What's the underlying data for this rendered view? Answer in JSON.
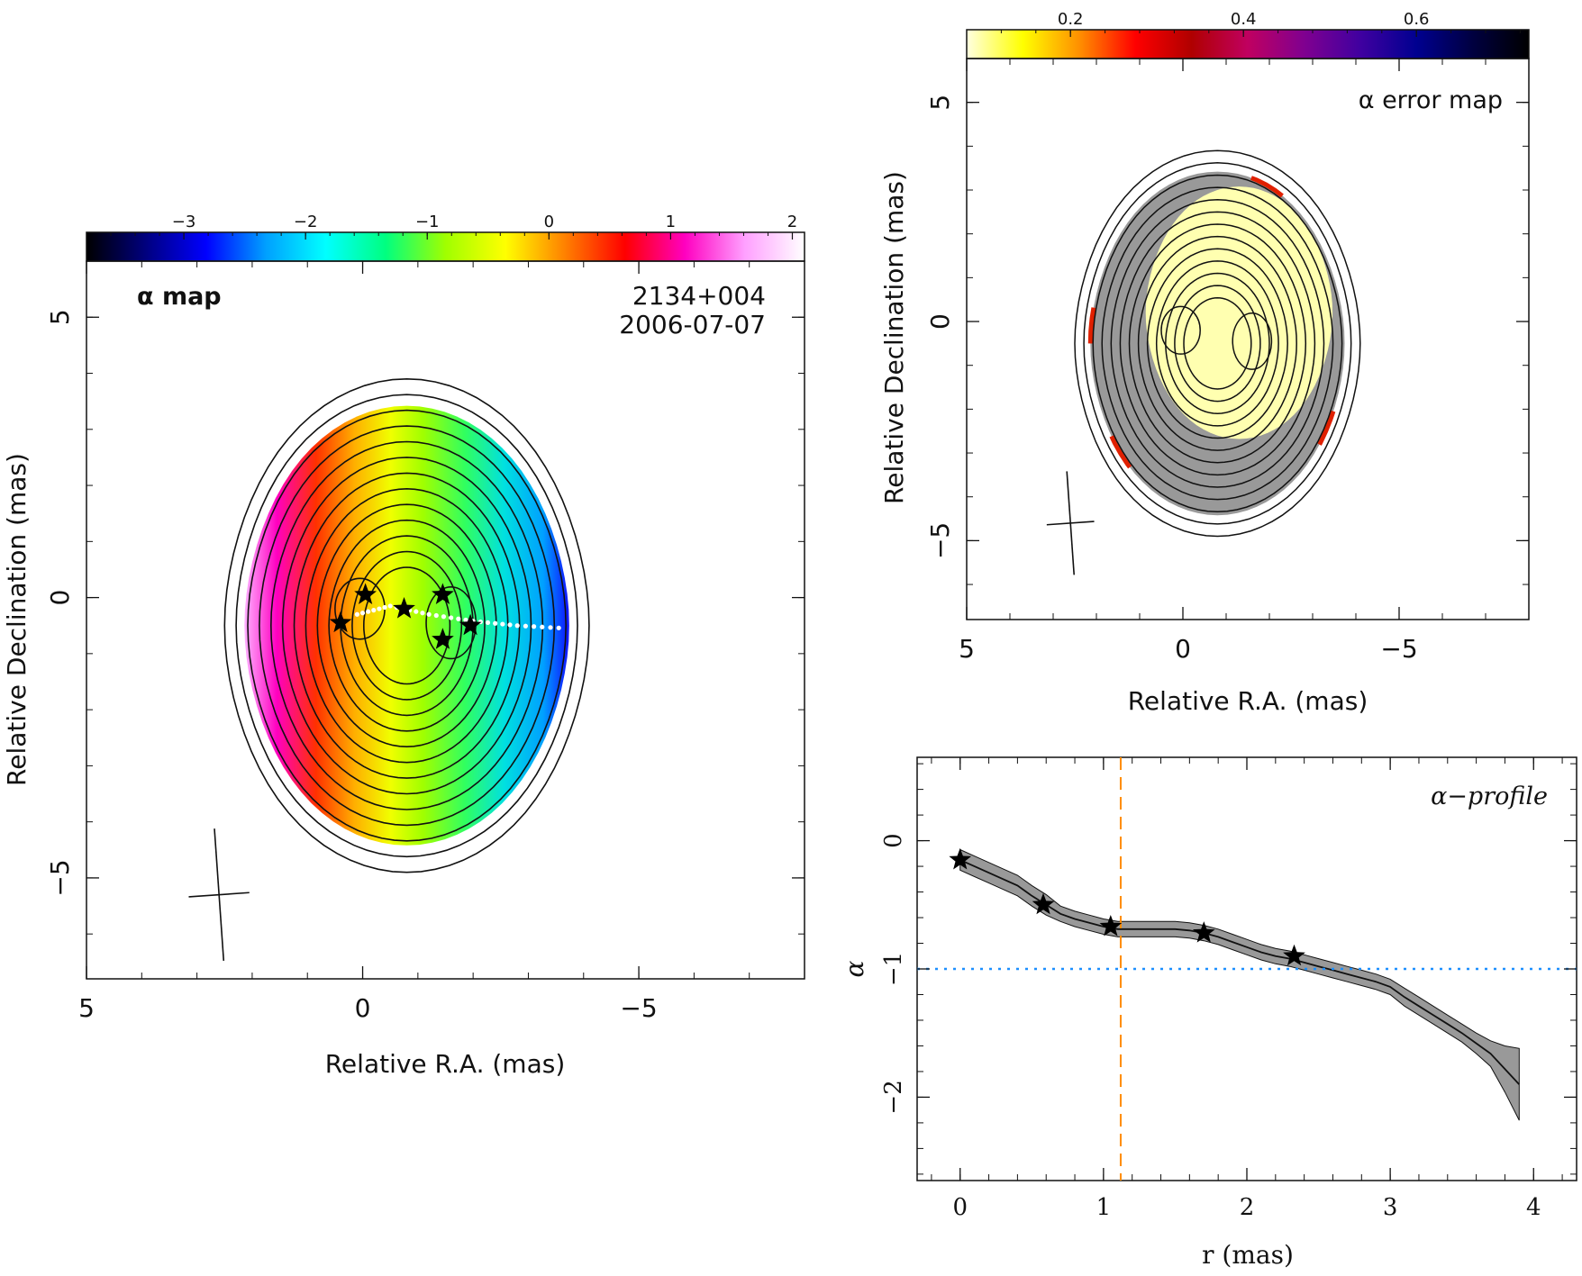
{
  "chart_data": [
    {
      "type": "heatmap",
      "panel": "alpha-map",
      "label": "α map",
      "source_name": "2134+004",
      "epoch": "2006-07-07",
      "xlabel": "Relative R.A. (mas)",
      "ylabel": "Relative Declination (mas)",
      "xlim": [
        5,
        -8
      ],
      "ylim": [
        -6.8,
        6
      ],
      "x_ticks": [
        5,
        0,
        -5
      ],
      "x_tick_labels": [
        "5",
        "0",
        "−5"
      ],
      "y_ticks": [
        5,
        0,
        -5
      ],
      "y_tick_labels": [
        "5",
        "0",
        "−5"
      ],
      "colorbar": {
        "range": [
          -3.8,
          2.1
        ],
        "ticks": [
          -3,
          -2,
          -1,
          0,
          1,
          2
        ],
        "tick_labels": [
          "−3",
          "−2",
          "−1",
          "0",
          "1",
          "2"
        ],
        "stops": [
          "#000000",
          "#000080",
          "#0000ff",
          "#00a0ff",
          "#00ffff",
          "#00ff80",
          "#a0ff00",
          "#ffff00",
          "#ff8000",
          "#ff0000",
          "#ff00c0",
          "#ffa0ff",
          "#ffffff"
        ]
      },
      "core_components": [
        {
          "x": 0.4,
          "y": -0.45
        },
        {
          "x": -0.05,
          "y": 0.05
        },
        {
          "x": -0.75,
          "y": -0.2
        },
        {
          "x": -1.45,
          "y": 0.05
        },
        {
          "x": -1.45,
          "y": -0.75
        },
        {
          "x": -1.95,
          "y": -0.5
        }
      ],
      "ridge_line": [
        {
          "x": 0.1,
          "y": -0.3
        },
        {
          "x": -0.5,
          "y": -0.15
        },
        {
          "x": -1.2,
          "y": -0.3
        },
        {
          "x": -2.0,
          "y": -0.42
        },
        {
          "x": -2.8,
          "y": -0.5
        },
        {
          "x": -3.7,
          "y": -0.55
        }
      ],
      "beam": {
        "major_mas": 2.4,
        "minor_mas": 1.1,
        "pa_deg": 4
      }
    },
    {
      "type": "heatmap",
      "panel": "alpha-error-map",
      "label": "α error map",
      "xlabel": "Relative R.A. (mas)",
      "ylabel": "Relative Declination (mas)",
      "xlim": [
        5,
        -8
      ],
      "ylim": [
        -6.8,
        6
      ],
      "x_ticks": [
        5,
        0,
        -5
      ],
      "x_tick_labels": [
        "5",
        "0",
        "−5"
      ],
      "y_ticks": [
        5,
        0,
        -5
      ],
      "y_tick_labels": [
        "5",
        "0",
        "−5"
      ],
      "colorbar": {
        "range": [
          0.08,
          0.73
        ],
        "ticks": [
          0.2,
          0.4,
          0.6
        ],
        "tick_labels": [
          "0.2",
          "0.4",
          "0.6"
        ],
        "stops": [
          "#ffffe0",
          "#ffff00",
          "#ff9000",
          "#ff0000",
          "#b00000",
          "#c00060",
          "#800090",
          "#4000a0",
          "#000090",
          "#000040",
          "#000000"
        ]
      },
      "flat_color": "#999999",
      "low_error_color": "#ffffb0",
      "beam": {
        "major_mas": 2.4,
        "minor_mas": 1.1,
        "pa_deg": 4
      }
    },
    {
      "type": "line",
      "panel": "alpha-profile",
      "label": "α−profile",
      "xlabel": "r (mas)",
      "ylabel": "α",
      "xlim": [
        -0.3,
        4.3
      ],
      "ylim": [
        -2.65,
        0.65
      ],
      "x_ticks": [
        0,
        1,
        2,
        3,
        4
      ],
      "x_tick_labels": [
        "0",
        "1",
        "2",
        "3",
        "4"
      ],
      "y_ticks": [
        0,
        -1,
        -2
      ],
      "y_tick_labels": [
        "0",
        "−1",
        "−2"
      ],
      "series": [
        {
          "x": [
            0,
            0.1,
            0.2,
            0.3,
            0.4,
            0.5,
            0.6,
            0.7,
            0.8,
            0.9,
            1.0,
            1.1,
            1.2,
            1.3,
            1.4,
            1.5,
            1.6,
            1.7,
            1.8,
            1.9,
            2.0,
            2.1,
            2.2,
            2.3,
            2.4,
            2.5,
            2.6,
            2.7,
            2.8,
            2.9,
            3.0,
            3.1,
            3.2,
            3.3,
            3.4,
            3.5,
            3.6,
            3.7,
            3.8,
            3.9
          ],
          "y": [
            -0.15,
            -0.2,
            -0.25,
            -0.3,
            -0.35,
            -0.43,
            -0.5,
            -0.57,
            -0.61,
            -0.64,
            -0.67,
            -0.69,
            -0.69,
            -0.69,
            -0.69,
            -0.69,
            -0.7,
            -0.72,
            -0.75,
            -0.79,
            -0.83,
            -0.87,
            -0.9,
            -0.92,
            -0.95,
            -0.98,
            -1.01,
            -1.04,
            -1.07,
            -1.1,
            -1.14,
            -1.22,
            -1.29,
            -1.36,
            -1.43,
            -1.5,
            -1.58,
            -1.66,
            -1.78,
            -1.9
          ],
          "err": [
            0.08,
            0.08,
            0.08,
            0.08,
            0.08,
            0.08,
            0.08,
            0.06,
            0.06,
            0.06,
            0.06,
            0.06,
            0.06,
            0.06,
            0.06,
            0.06,
            0.06,
            0.06,
            0.06,
            0.06,
            0.06,
            0.06,
            0.06,
            0.06,
            0.06,
            0.06,
            0.06,
            0.06,
            0.06,
            0.06,
            0.06,
            0.07,
            0.07,
            0.07,
            0.07,
            0.07,
            0.08,
            0.1,
            0.18,
            0.28
          ]
        }
      ],
      "markers": [
        {
          "x": 0.0,
          "y": -0.15
        },
        {
          "x": 0.58,
          "y": -0.5
        },
        {
          "x": 1.05,
          "y": -0.67
        },
        {
          "x": 1.7,
          "y": -0.72
        },
        {
          "x": 2.33,
          "y": -0.9
        }
      ],
      "vline_x": 1.12,
      "vline_color": "#ff8c00",
      "hline_y": -1.0,
      "hline_color": "#1e90ff",
      "band_color": "#999999"
    }
  ]
}
